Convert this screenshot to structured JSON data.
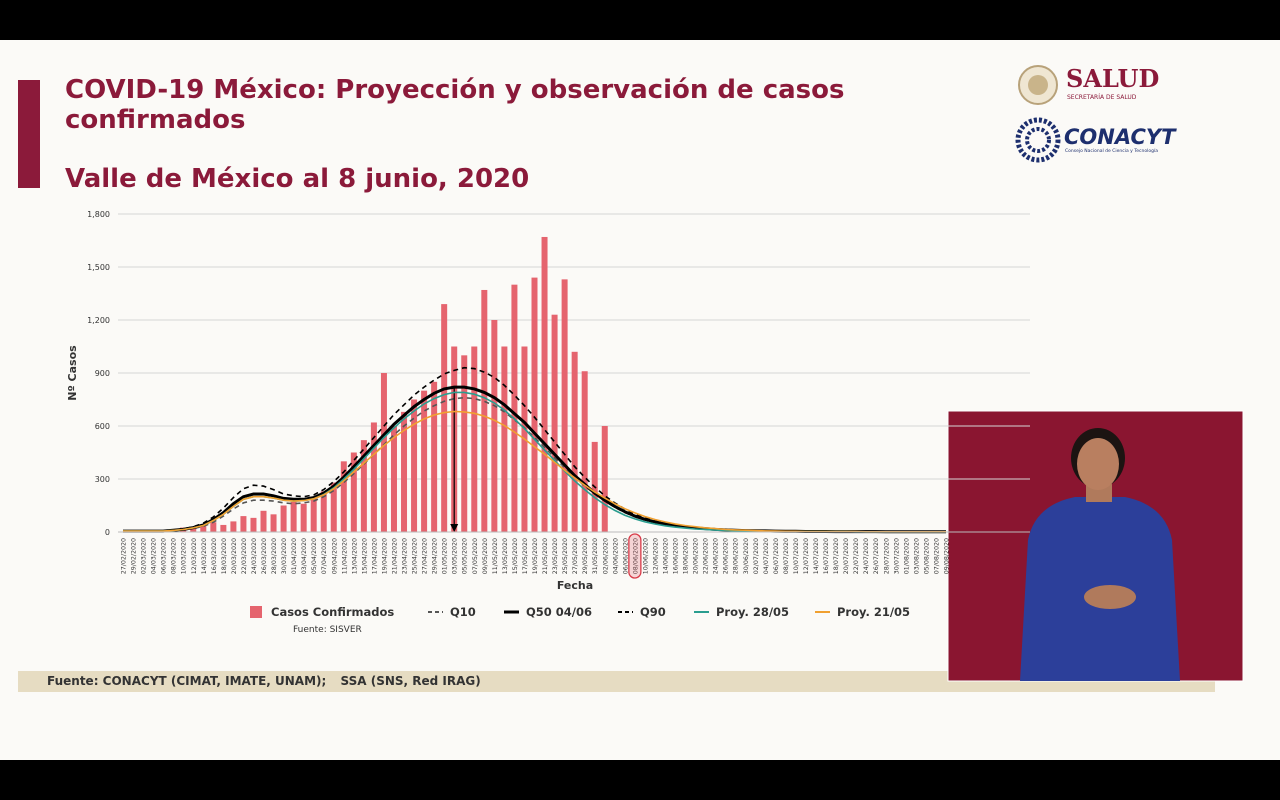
{
  "header": {
    "title": "COVID-19 México: Proyección y observación de casos confirmados",
    "subtitle": "Valle de México al 8 junio, 2020"
  },
  "logos": {
    "salud": "SALUD",
    "salud_sub": "SECRETARÍA DE SALUD",
    "conacyt": "CONACYT",
    "conacyt_sub": "Consejo Nacional de Ciencia y Tecnología"
  },
  "chart_data": {
    "type": "combo",
    "y_label": "Nº Casos",
    "x_label": "Fecha",
    "note": "Fuente: SISVER",
    "ylim": [
      0,
      1800
    ],
    "yticks": [
      0,
      300,
      600,
      900,
      {
        "value": 1200,
        "label": "1,200"
      },
      {
        "value": 1500,
        "label": "1,500"
      },
      {
        "value": 1800,
        "label": "1,800"
      }
    ],
    "grid": true,
    "highlight": "08/06/2020",
    "categories": [
      "27/02/2020",
      "29/02/2020",
      "02/03/2020",
      "04/03/2020",
      "06/03/2020",
      "08/03/2020",
      "10/03/2020",
      "12/03/2020",
      "14/03/2020",
      "16/03/2020",
      "18/03/2020",
      "20/03/2020",
      "22/03/2020",
      "24/03/2020",
      "26/03/2020",
      "28/03/2020",
      "30/03/2020",
      "01/04/2020",
      "03/04/2020",
      "05/04/2020",
      "07/04/2020",
      "09/04/2020",
      "11/04/2020",
      "13/04/2020",
      "15/04/2020",
      "17/04/2020",
      "19/04/2020",
      "21/04/2020",
      "23/04/2020",
      "25/04/2020",
      "27/04/2020",
      "29/04/2020",
      "01/05/2020",
      "03/05/2020",
      "05/05/2020",
      "07/05/2020",
      "09/05/2020",
      "11/05/2020",
      "13/05/2020",
      "15/05/2020",
      "17/05/2020",
      "19/05/2020",
      "21/05/2020",
      "23/05/2020",
      "25/05/2020",
      "27/05/2020",
      "29/05/2020",
      "31/05/2020",
      "02/06/2020",
      "04/06/2020",
      "06/06/2020",
      "08/06/2020",
      "10/06/2020",
      "12/06/2020",
      "14/06/2020",
      "16/06/2020",
      "18/06/2020",
      "20/06/2020",
      "22/06/2020",
      "24/06/2020",
      "26/06/2020",
      "28/06/2020",
      "30/06/2020",
      "02/07/2020",
      "04/07/2020",
      "06/07/2020",
      "08/07/2020",
      "10/07/2020",
      "12/07/2020",
      "14/07/2020",
      "16/07/2020",
      "18/07/2020",
      "20/07/2020",
      "22/07/2020",
      "24/07/2020",
      "26/07/2020",
      "28/07/2020",
      "30/07/2020",
      "01/08/2020",
      "03/08/2020",
      "05/08/2020",
      "07/08/2020",
      "09/08/2020"
    ],
    "series": [
      {
        "name": "Casos Confirmados",
        "type": "bar",
        "color": "#e5646e",
        "values": [
          0,
          0,
          0,
          0,
          5,
          10,
          25,
          20,
          40,
          55,
          40,
          60,
          90,
          80,
          120,
          100,
          150,
          170,
          160,
          200,
          230,
          280,
          400,
          450,
          520,
          620,
          900,
          600,
          680,
          750,
          800,
          850,
          1290,
          1050,
          1000,
          1050,
          1370,
          1200,
          1050,
          1400,
          1050,
          1440,
          1670,
          1230,
          1430,
          1020,
          910,
          510,
          600,
          null,
          null,
          null,
          null,
          null,
          null,
          null,
          null,
          null,
          null,
          null,
          null,
          null,
          null,
          null,
          null,
          null,
          null,
          null,
          null,
          null,
          null,
          null,
          null,
          null,
          null,
          null,
          null,
          null,
          null,
          null,
          null,
          null,
          null
        ]
      },
      {
        "name": "Q10",
        "type": "line",
        "color": "#555555",
        "dash": "dashed",
        "values": [
          5,
          5,
          5,
          5,
          5,
          8,
          12,
          20,
          32,
          55,
          90,
          130,
          165,
          180,
          180,
          175,
          165,
          160,
          165,
          175,
          200,
          235,
          280,
          330,
          385,
          440,
          495,
          550,
          600,
          645,
          685,
          715,
          740,
          755,
          760,
          755,
          740,
          715,
          680,
          635,
          590,
          535,
          480,
          420,
          365,
          310,
          260,
          215,
          175,
          140,
          110,
          86,
          68,
          54,
          43,
          34,
          27,
          22,
          18,
          14,
          11,
          9,
          8,
          6,
          5,
          5,
          4,
          3,
          3,
          3,
          2,
          2,
          2,
          2,
          2,
          1,
          1,
          1,
          1,
          1,
          1,
          1,
          1
        ]
      },
      {
        "name": "Q50 04/06",
        "type": "line",
        "color": "#000000",
        "dash": "solid",
        "peak_arrow": true,
        "values": [
          5,
          5,
          5,
          5,
          5,
          10,
          15,
          25,
          40,
          70,
          110,
          160,
          200,
          215,
          215,
          205,
          190,
          185,
          185,
          195,
          220,
          260,
          310,
          370,
          430,
          490,
          550,
          610,
          660,
          710,
          750,
          785,
          810,
          820,
          820,
          810,
          790,
          760,
          720,
          670,
          620,
          560,
          500,
          440,
          380,
          320,
          270,
          220,
          180,
          145,
          115,
          90,
          72,
          57,
          45,
          36,
          29,
          23,
          19,
          15,
          12,
          10,
          8,
          7,
          6,
          5,
          4,
          4,
          3,
          3,
          3,
          2,
          2,
          2,
          2,
          2,
          1,
          1,
          1,
          1,
          1,
          1,
          1
        ]
      },
      {
        "name": "Q90",
        "type": "line",
        "color": "#000000",
        "dash": "dashed",
        "values": [
          5,
          5,
          5,
          5,
          6,
          12,
          18,
          30,
          50,
          85,
          135,
          195,
          245,
          265,
          260,
          240,
          215,
          205,
          200,
          210,
          240,
          285,
          340,
          405,
          470,
          535,
          600,
          665,
          720,
          775,
          820,
          860,
          895,
          915,
          930,
          925,
          905,
          875,
          830,
          775,
          715,
          650,
          580,
          510,
          440,
          370,
          310,
          255,
          205,
          165,
          130,
          100,
          80,
          63,
          50,
          40,
          32,
          26,
          21,
          17,
          14,
          11,
          9,
          8,
          6,
          5,
          5,
          4,
          4,
          3,
          3,
          3,
          2,
          2,
          2,
          2,
          2,
          1,
          1,
          1,
          1,
          1,
          1
        ]
      },
      {
        "name": "Proy. 28/05",
        "type": "line",
        "color": "#2a9d8f",
        "dash": "solid",
        "values": [
          5,
          5,
          5,
          5,
          5,
          9,
          14,
          23,
          37,
          65,
          100,
          145,
          185,
          200,
          200,
          192,
          180,
          175,
          178,
          188,
          212,
          250,
          300,
          355,
          415,
          475,
          535,
          590,
          640,
          685,
          725,
          755,
          778,
          790,
          790,
          780,
          760,
          730,
          690,
          640,
          585,
          525,
          465,
          405,
          345,
          290,
          240,
          195,
          155,
          122,
          95,
          74,
          58,
          45,
          35,
          28,
          22,
          17,
          14,
          11,
          9,
          7,
          6,
          5,
          4,
          4,
          3,
          3,
          2,
          2,
          2,
          2,
          2,
          1,
          1,
          1,
          1,
          1,
          1,
          1,
          1,
          1,
          1
        ]
      },
      {
        "name": "Proy. 21/05",
        "type": "line",
        "color": "#f0a030",
        "dash": "solid",
        "values": [
          5,
          5,
          5,
          5,
          5,
          9,
          14,
          23,
          37,
          65,
          100,
          145,
          185,
          200,
          200,
          192,
          180,
          175,
          178,
          188,
          210,
          245,
          290,
          340,
          390,
          440,
          490,
          535,
          575,
          610,
          640,
          662,
          676,
          682,
          680,
          672,
          656,
          632,
          602,
          566,
          526,
          483,
          440,
          395,
          350,
          307,
          265,
          227,
          192,
          160,
          132,
          108,
          88,
          71,
          57,
          46,
          37,
          30,
          24,
          19,
          15,
          12,
          10,
          8,
          6,
          5,
          4,
          4,
          3,
          3,
          2,
          2,
          2,
          2,
          1,
          1,
          1,
          1,
          1,
          1,
          1,
          1,
          1
        ]
      }
    ]
  },
  "footer": {
    "left": "Fuente: CONACYT (CIMAT, IMATE, UNAM);",
    "right": "SSA (SNS, Red IRAG)"
  }
}
